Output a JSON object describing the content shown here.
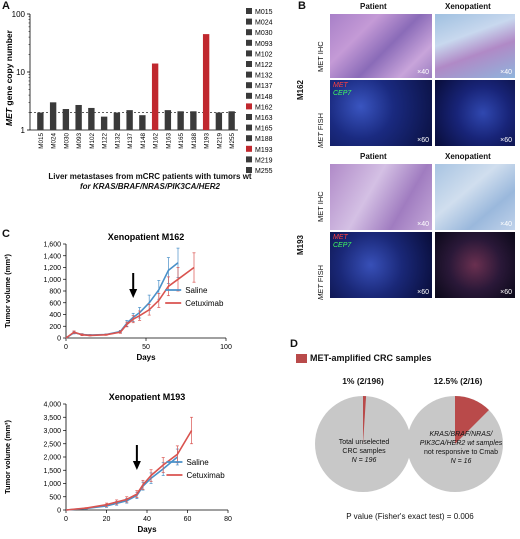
{
  "panels": {
    "a": "A",
    "b": "B",
    "c": "C",
    "d": "D"
  },
  "panel_a": {
    "ylabel_gene": "MET",
    "ylabel_rest": " gene copy number",
    "yticks": [
      "100",
      "10",
      "1"
    ],
    "xlabel_line1": "Liver metastases from mCRC patients with tumors wt",
    "xlabel_line2": "for KRAS/BRAF/NRAS/PIK3CA/HER2"
  },
  "panel_b": {
    "col_patient": "Patient",
    "col_xeno": "Xenopatient",
    "row_m162": "M162",
    "row_m193": "M193",
    "met_ihc": "MET IHC",
    "met_fish": "MET FISH",
    "fish_met": "MET",
    "fish_cep7": "CEP7",
    "mag40": "×40",
    "mag60": "×60"
  },
  "panel_d": {
    "legend": "MET-amplified CRC samples",
    "pie1_pct": "1% (2/196)",
    "pie2_pct": "12.5% (2/16)",
    "pie1_line1": "Total unselected",
    "pie1_line2": "CRC samples",
    "pie1_line3": "N = 196",
    "pie2_line1": "KRAS/BRAF/NRAS/",
    "pie2_line2": "PIK3CA/HER2 wt samples",
    "pie2_line3": "not responsive to Cmab",
    "pie2_line4": "N = 16",
    "pvalue": "P value (Fisher's exact test) = 0.006"
  },
  "colors": {
    "bar_normal": "#3a3a3a",
    "bar_amplified": "#c0282e",
    "saline": "#4a90c8",
    "cetuximab": "#d9534f",
    "pie_gray": "#c8c8c8",
    "pie_red": "#b94a4a"
  },
  "chart_data": [
    {
      "type": "bar",
      "panel": "A",
      "ylabel": "MET gene copy number",
      "yscale": "log",
      "ylim": [
        1,
        100
      ],
      "threshold_line": 2,
      "categories": [
        "M015",
        "M024",
        "M030",
        "M093",
        "M102",
        "M122",
        "M132",
        "M137",
        "M148",
        "M162",
        "M163",
        "M165",
        "M188",
        "M193",
        "M219",
        "M255"
      ],
      "values": [
        2.0,
        3.0,
        2.3,
        2.7,
        2.4,
        1.7,
        2.0,
        2.2,
        1.8,
        14,
        2.2,
        2.1,
        2.1,
        45,
        2.0,
        2.1
      ],
      "amplified": [
        "M162",
        "M193"
      ],
      "legend": [
        "M015",
        "M024",
        "M030",
        "M093",
        "M102",
        "M122",
        "M132",
        "M137",
        "M148",
        "M162",
        "M163",
        "M165",
        "M188",
        "M193",
        "M219",
        "M255"
      ]
    },
    {
      "type": "line",
      "panel": "C1",
      "title": "Xenopatient M162",
      "xlabel": "Days",
      "ylabel": "Tumor volume (mm³)",
      "xlim": [
        0,
        100
      ],
      "ylim": [
        0,
        1600
      ],
      "xticks": [
        0,
        50,
        100
      ],
      "yticks": [
        0,
        200,
        400,
        600,
        800,
        1000,
        1200,
        1400,
        1600
      ],
      "ytick_labels": [
        "0",
        "200",
        "400",
        "600",
        "800",
        "1,000",
        "1,200",
        "1,400",
        "1,600"
      ],
      "arrow_x": 42,
      "series": [
        {
          "name": "Saline",
          "x": [
            0,
            5,
            10,
            15,
            25,
            34,
            38,
            42,
            46,
            52,
            58,
            64,
            70
          ],
          "y": [
            0,
            90,
            60,
            50,
            60,
            110,
            250,
            350,
            430,
            600,
            820,
            1150,
            1280
          ],
          "err": [
            0,
            20,
            15,
            10,
            10,
            20,
            50,
            70,
            90,
            130,
            160,
            220,
            250
          ]
        },
        {
          "name": "Cetuximab",
          "x": [
            0,
            5,
            10,
            15,
            25,
            34,
            38,
            42,
            46,
            52,
            58,
            64,
            70,
            80
          ],
          "y": [
            0,
            100,
            55,
            45,
            55,
            100,
            230,
            320,
            380,
            480,
            640,
            880,
            1000,
            1200
          ],
          "err": [
            0,
            20,
            15,
            10,
            10,
            20,
            40,
            60,
            80,
            90,
            120,
            160,
            200,
            250
          ]
        }
      ]
    },
    {
      "type": "line",
      "panel": "C2",
      "title": "Xenopatient M193",
      "xlabel": "Days",
      "ylabel": "Tumor volume (mm³)",
      "xlim": [
        0,
        80
      ],
      "ylim": [
        0,
        4000
      ],
      "xticks": [
        0,
        20,
        40,
        60,
        80
      ],
      "yticks": [
        0,
        500,
        1000,
        1500,
        2000,
        2500,
        3000,
        3500,
        4000
      ],
      "ytick_labels": [
        "0",
        "500",
        "1,000",
        "1,500",
        "2,000",
        "2,500",
        "3,000",
        "3,500",
        "4,000"
      ],
      "arrow_x": 35,
      "series": [
        {
          "name": "Saline",
          "x": [
            0,
            10,
            20,
            25,
            30,
            35,
            38,
            42,
            48,
            55
          ],
          "y": [
            0,
            60,
            150,
            250,
            350,
            550,
            900,
            1200,
            1550,
            2000
          ],
          "err": [
            0,
            20,
            50,
            70,
            90,
            120,
            150,
            200,
            250,
            300
          ]
        },
        {
          "name": "Cetuximab",
          "x": [
            0,
            10,
            20,
            25,
            30,
            35,
            38,
            42,
            48,
            55,
            62
          ],
          "y": [
            0,
            70,
            200,
            300,
            400,
            600,
            950,
            1300,
            1700,
            2100,
            3000
          ],
          "err": [
            0,
            20,
            60,
            80,
            100,
            130,
            170,
            220,
            280,
            320,
            500
          ]
        }
      ]
    },
    {
      "type": "pie",
      "panel": "D",
      "pies": [
        {
          "name": "Total unselected CRC samples",
          "slices": [
            {
              "label": "MET-amplified",
              "value": 2
            },
            {
              "label": "other",
              "value": 194
            }
          ]
        },
        {
          "name": "KRAS/BRAF/NRAS/PIK3CA/HER2 wt samples not responsive to Cmab",
          "slices": [
            {
              "label": "MET-amplified",
              "value": 2
            },
            {
              "label": "other",
              "value": 14
            }
          ]
        }
      ]
    }
  ]
}
